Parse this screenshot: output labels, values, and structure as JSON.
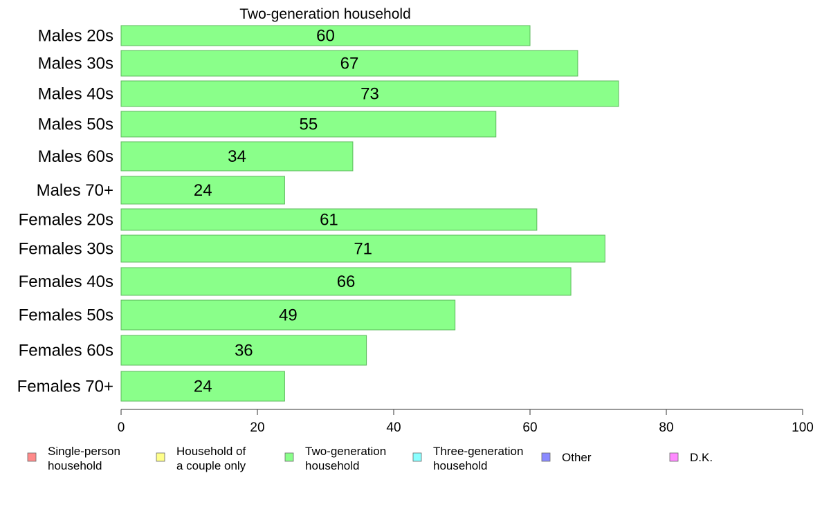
{
  "chart_data": {
    "type": "bar",
    "orientation": "horizontal",
    "title": "Two-generation household",
    "categories": [
      "Males 20s",
      "Males 30s",
      "Males 40s",
      "Males 50s",
      "Males 60s",
      "Males 70+",
      "Females 20s",
      "Females 30s",
      "Females 40s",
      "Females 50s",
      "Females 60s",
      "Females 70+"
    ],
    "values": [
      60,
      67,
      73,
      55,
      34,
      24,
      61,
      71,
      66,
      49,
      36,
      24
    ],
    "value_labels": [
      "60",
      "67",
      "73",
      "55",
      "34",
      "24",
      "61",
      "71",
      "66",
      "49",
      "36",
      "24"
    ],
    "xlim": [
      0,
      100
    ],
    "xticks": [
      "0",
      "20",
      "40",
      "60",
      "80",
      "100"
    ],
    "bar_color": "#8aff8a",
    "bar_stroke": "#5cb85c",
    "grid": false,
    "legend": [
      {
        "lines": [
          "Single-person",
          "household"
        ],
        "color": "#ff8a8a"
      },
      {
        "lines": [
          "Household of",
          "a couple only"
        ],
        "color": "#ffff8a"
      },
      {
        "lines": [
          "Two-generation",
          "household"
        ],
        "color": "#8aff8a"
      },
      {
        "lines": [
          "Three-generation",
          "household"
        ],
        "color": "#8affff"
      },
      {
        "lines": [
          "Other"
        ],
        "color": "#8a8aff"
      },
      {
        "lines": [
          "D.K."
        ],
        "color": "#ff8aff"
      }
    ],
    "legend_position": "bottom"
  }
}
